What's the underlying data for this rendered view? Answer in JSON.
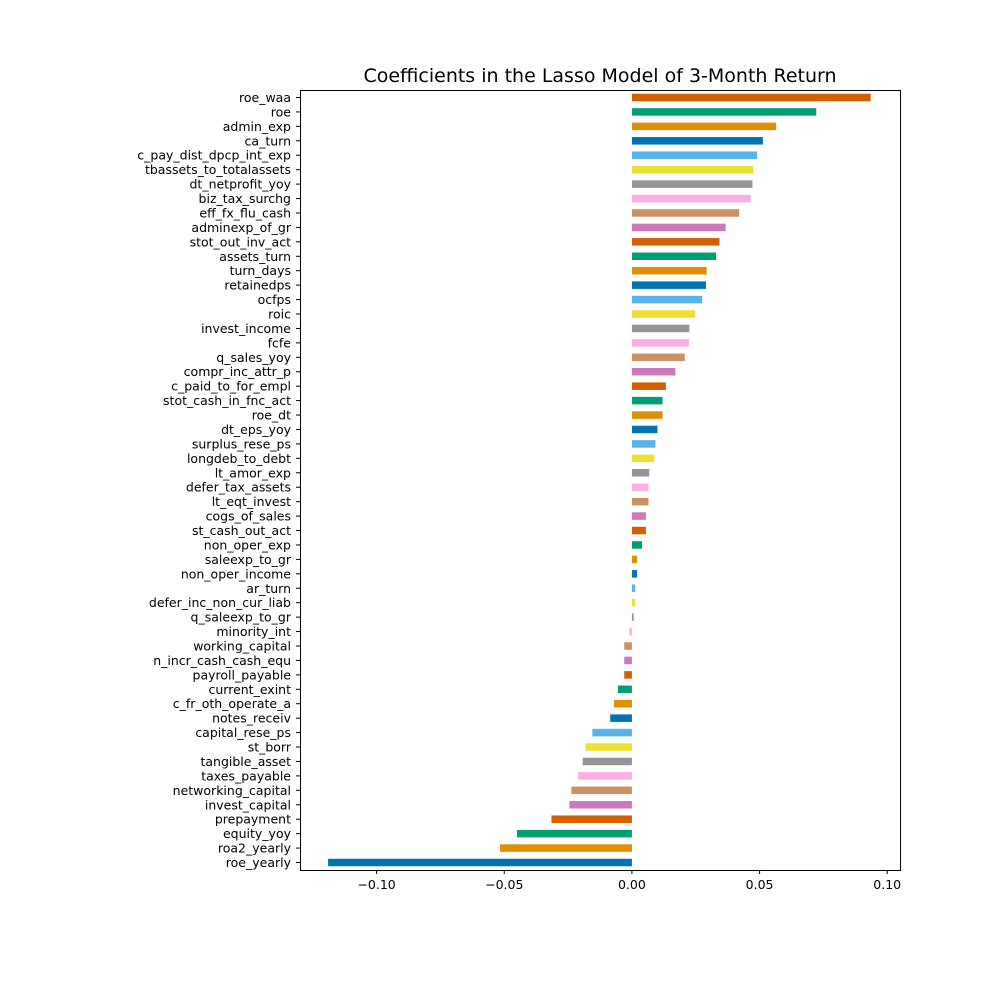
{
  "chart_data": {
    "type": "bar",
    "orientation": "horizontal",
    "title": "Coefficients in the Lasso Model of 3-Month Return",
    "xlabel": "",
    "ylabel": "",
    "xlim": [
      -0.13,
      0.105
    ],
    "xticks": [
      -0.1,
      -0.05,
      0.0,
      0.05,
      0.1
    ],
    "xtick_labels": [
      "−0.10",
      "−0.05",
      "0.00",
      "0.05",
      "0.10"
    ],
    "grid": false,
    "legend": "none",
    "palette": [
      "#0072b2",
      "#e69f00",
      "#009e73",
      "#d55e00",
      "#cc78bc",
      "#ca9161",
      "#fbafe4",
      "#949494",
      "#ece133",
      "#56b4e9"
    ],
    "categories": [
      "roe_waa",
      "roe",
      "admin_exp",
      "ca_turn",
      "c_pay_dist_dpcp_int_exp",
      "tbassets_to_totalassets",
      "dt_netprofit_yoy",
      "biz_tax_surchg",
      "eff_fx_flu_cash",
      "adminexp_of_gr",
      "stot_out_inv_act",
      "assets_turn",
      "turn_days",
      "retainedps",
      "ocfps",
      "roic",
      "invest_income",
      "fcfe",
      "q_sales_yoy",
      "compr_inc_attr_p",
      "c_paid_to_for_empl",
      "stot_cash_in_fnc_act",
      "roe_dt",
      "dt_eps_yoy",
      "surplus_rese_ps",
      "longdeb_to_debt",
      "lt_amor_exp",
      "defer_tax_assets",
      "lt_eqt_invest",
      "cogs_of_sales",
      "st_cash_out_act",
      "non_oper_exp",
      "saleexp_to_gr",
      "non_oper_income",
      "ar_turn",
      "defer_inc_non_cur_liab",
      "q_saleexp_to_gr",
      "minority_int",
      "working_capital",
      "n_incr_cash_cash_equ",
      "payroll_payable",
      "current_exint",
      "c_fr_oth_operate_a",
      "notes_receiv",
      "capital_rese_ps",
      "st_borr",
      "tangible_asset",
      "taxes_payable",
      "networking_capital",
      "invest_capital",
      "prepayment",
      "equity_yoy",
      "roa2_yearly",
      "roe_yearly"
    ],
    "values": [
      0.0935,
      0.0722,
      0.0565,
      0.0513,
      0.049,
      0.0475,
      0.0472,
      0.0465,
      0.042,
      0.0367,
      0.0343,
      0.033,
      0.0293,
      0.029,
      0.0275,
      0.0247,
      0.0225,
      0.0223,
      0.0207,
      0.017,
      0.0133,
      0.012,
      0.012,
      0.01,
      0.0092,
      0.0088,
      0.0068,
      0.0065,
      0.0065,
      0.0055,
      0.0055,
      0.004,
      0.002,
      0.002,
      0.0013,
      0.0013,
      0.0007,
      -0.001,
      -0.003,
      -0.003,
      -0.003,
      -0.0055,
      -0.007,
      -0.0085,
      -0.0155,
      -0.0182,
      -0.0193,
      -0.021,
      -0.0237,
      -0.0245,
      -0.0315,
      -0.045,
      -0.0517,
      -0.119
    ],
    "colors": [
      "#d55e00",
      "#029e73",
      "#de8f05",
      "#0173b2",
      "#56b4e9",
      "#ece133",
      "#949494",
      "#fbafe4",
      "#ca9161",
      "#cc78bc",
      "#d55e00",
      "#029e73",
      "#de8f05",
      "#0173b2",
      "#56b4e9",
      "#ece133",
      "#949494",
      "#fbafe4",
      "#ca9161",
      "#cc78bc",
      "#d55e00",
      "#029e73",
      "#de8f05",
      "#0173b2",
      "#56b4e9",
      "#ece133",
      "#949494",
      "#fbafe4",
      "#ca9161",
      "#cc78bc",
      "#d55e00",
      "#029e73",
      "#de8f05",
      "#0173b2",
      "#56b4e9",
      "#ece133",
      "#949494",
      "#fbafe4",
      "#ca9161",
      "#cc78bc",
      "#d55e00",
      "#029e73",
      "#de8f05",
      "#0173b2",
      "#56b4e9",
      "#ece133",
      "#949494",
      "#fbafe4",
      "#ca9161",
      "#cc78bc",
      "#d55e00",
      "#029e73",
      "#de8f05",
      "#0173b2"
    ]
  }
}
